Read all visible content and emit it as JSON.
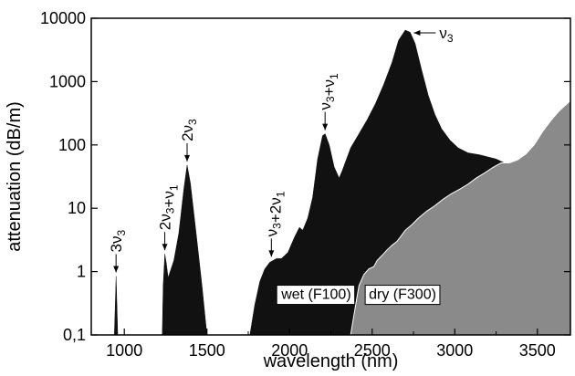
{
  "chart_data": {
    "type": "area",
    "title": "",
    "xlabel": "wavelength (nm)",
    "ylabel": "attenuation (dB/m)",
    "xlim": [
      800,
      3700
    ],
    "ylim": [
      0.1,
      10000
    ],
    "yscale": "log",
    "grid": false,
    "x_ticks": [
      1000,
      1500,
      2000,
      2500,
      3000,
      3500
    ],
    "x_tick_labels": [
      "1000",
      "1500",
      "2000",
      "2500",
      "3000",
      "3500"
    ],
    "y_ticks": [
      0.1,
      1,
      10,
      100,
      1000,
      10000
    ],
    "y_tick_labels": [
      "0,1",
      "1",
      "10",
      "100",
      "1000",
      "10000"
    ],
    "series": [
      {
        "name": "wet (F100)",
        "color": "#111111",
        "points": [
          [
            940,
            0.1
          ],
          [
            945,
            0.3
          ],
          [
            950,
            0.85
          ],
          [
            955,
            0.3
          ],
          [
            960,
            0.1
          ],
          [
            1230,
            0.1
          ],
          [
            1235,
            0.6
          ],
          [
            1245,
            1.9
          ],
          [
            1255,
            1.3
          ],
          [
            1265,
            0.8
          ],
          [
            1300,
            1.5
          ],
          [
            1330,
            4
          ],
          [
            1360,
            20
          ],
          [
            1380,
            48
          ],
          [
            1400,
            25
          ],
          [
            1440,
            3
          ],
          [
            1470,
            0.6
          ],
          [
            1500,
            0.1
          ],
          [
            1760,
            0.1
          ],
          [
            1790,
            0.3
          ],
          [
            1820,
            0.7
          ],
          [
            1850,
            1.1
          ],
          [
            1880,
            1.4
          ],
          [
            1920,
            1.6
          ],
          [
            1950,
            1.6
          ],
          [
            1990,
            2
          ],
          [
            2030,
            3.5
          ],
          [
            2060,
            5
          ],
          [
            2080,
            4.5
          ],
          [
            2110,
            7
          ],
          [
            2140,
            15
          ],
          [
            2170,
            60
          ],
          [
            2200,
            140
          ],
          [
            2215,
            150
          ],
          [
            2240,
            100
          ],
          [
            2270,
            45
          ],
          [
            2300,
            30
          ],
          [
            2320,
            40
          ],
          [
            2370,
            90
          ],
          [
            2420,
            150
          ],
          [
            2470,
            250
          ],
          [
            2520,
            450
          ],
          [
            2570,
            900
          ],
          [
            2620,
            2000
          ],
          [
            2660,
            4500
          ],
          [
            2700,
            6500
          ],
          [
            2730,
            6000
          ],
          [
            2760,
            4000
          ],
          [
            2800,
            1500
          ],
          [
            2840,
            600
          ],
          [
            2880,
            300
          ],
          [
            2920,
            180
          ],
          [
            2970,
            120
          ],
          [
            3020,
            90
          ],
          [
            3080,
            75
          ],
          [
            3150,
            70
          ],
          [
            3250,
            60
          ],
          [
            3300,
            52
          ],
          [
            3350,
            52
          ],
          [
            3400,
            60
          ],
          [
            3450,
            75
          ],
          [
            3500,
            110
          ],
          [
            3550,
            180
          ],
          [
            3600,
            260
          ],
          [
            3650,
            360
          ],
          [
            3700,
            500
          ]
        ]
      },
      {
        "name": "dry (F300)",
        "color": "#8a8a8a",
        "points": [
          [
            2370,
            0.1
          ],
          [
            2400,
            0.3
          ],
          [
            2420,
            0.6
          ],
          [
            2450,
            0.9
          ],
          [
            2480,
            1.1
          ],
          [
            2510,
            1.2
          ],
          [
            2530,
            1.5
          ],
          [
            2560,
            1.8
          ],
          [
            2590,
            2.2
          ],
          [
            2620,
            2.6
          ],
          [
            2650,
            3
          ],
          [
            2680,
            3.8
          ],
          [
            2700,
            4.5
          ],
          [
            2740,
            5.5
          ],
          [
            2780,
            7
          ],
          [
            2830,
            9
          ],
          [
            2880,
            11
          ],
          [
            2930,
            14
          ],
          [
            2980,
            17
          ],
          [
            3030,
            20
          ],
          [
            3080,
            24
          ],
          [
            3130,
            30
          ],
          [
            3180,
            36
          ],
          [
            3230,
            44
          ],
          [
            3280,
            52
          ],
          [
            3330,
            52
          ],
          [
            3380,
            58
          ],
          [
            3430,
            72
          ],
          [
            3480,
            100
          ],
          [
            3530,
            160
          ],
          [
            3580,
            240
          ],
          [
            3630,
            340
          ],
          [
            3700,
            500
          ]
        ]
      }
    ],
    "annotations": [
      {
        "text": "3ν3",
        "x": 950,
        "y": 0.85
      },
      {
        "text": "2ν3+ν1",
        "x": 1245,
        "y": 1.9
      },
      {
        "text": "2ν3",
        "x": 1380,
        "y": 48
      },
      {
        "text": "ν3+2ν1",
        "x": 1890,
        "y": 1.5
      },
      {
        "text": "ν3+ν1",
        "x": 2215,
        "y": 150
      },
      {
        "text": "ν3",
        "x": 2730,
        "y": 6500
      }
    ],
    "series_labels": [
      "wet (F100)",
      "dry (F300)"
    ]
  }
}
